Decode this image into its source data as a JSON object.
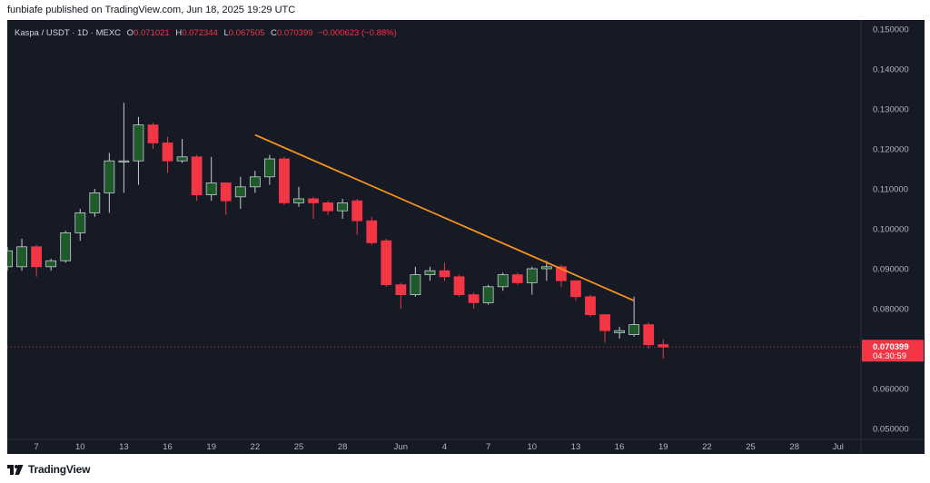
{
  "header": {
    "publish_text": "funbiafe published on TradingView.com, Jun 18, 2025 19:29 UTC"
  },
  "legend": {
    "symbol": "Kaspa / USDT · 1D · MEXC",
    "open_label": "O",
    "open": "0.071021",
    "high_label": "H",
    "high": "0.072344",
    "low_label": "L",
    "low": "0.067505",
    "close_label": "C",
    "close": "0.070399",
    "change": "−0.000623 (−0.88%)"
  },
  "price_tag": {
    "price": "0.070399",
    "countdown": "04:30:59"
  },
  "footer": {
    "brand": "TradingView"
  },
  "colors": {
    "up": "#1f5a2a",
    "down": "#f23645",
    "trendline": "#f7931a",
    "background": "#161a25"
  },
  "chart_data": {
    "type": "candlestick",
    "y_range": [
      0.04,
      0.155
    ],
    "y_ticks": [
      "0.150000",
      "0.140000",
      "0.130000",
      "0.120000",
      "0.110000",
      "0.100000",
      "0.090000",
      "0.080000",
      "0.060000",
      "0.050000"
    ],
    "x_ticks": [
      "7",
      "10",
      "13",
      "16",
      "19",
      "22",
      "25",
      "28",
      "Jun",
      "4",
      "7",
      "10",
      "13",
      "16",
      "19",
      "22",
      "25",
      "28",
      "Jul"
    ],
    "candles": [
      {
        "d": "May 5",
        "o": 0.0905,
        "h": 0.0955,
        "l": 0.0895,
        "c": 0.0945
      },
      {
        "d": "May 6",
        "o": 0.0905,
        "h": 0.0975,
        "l": 0.0895,
        "c": 0.0955
      },
      {
        "d": "May 7",
        "o": 0.0955,
        "h": 0.096,
        "l": 0.088,
        "c": 0.0905
      },
      {
        "d": "May 8",
        "o": 0.0905,
        "h": 0.0925,
        "l": 0.0895,
        "c": 0.092
      },
      {
        "d": "May 9",
        "o": 0.092,
        "h": 0.0995,
        "l": 0.0915,
        "c": 0.099
      },
      {
        "d": "May 10",
        "o": 0.099,
        "h": 0.105,
        "l": 0.097,
        "c": 0.104
      },
      {
        "d": "May 11",
        "o": 0.104,
        "h": 0.11,
        "l": 0.103,
        "c": 0.109
      },
      {
        "d": "May 12",
        "o": 0.109,
        "h": 0.119,
        "l": 0.104,
        "c": 0.117
      },
      {
        "d": "May 13",
        "o": 0.117,
        "h": 0.1315,
        "l": 0.109,
        "c": 0.117
      },
      {
        "d": "May 14",
        "o": 0.117,
        "h": 0.128,
        "l": 0.111,
        "c": 0.126
      },
      {
        "d": "May 15",
        "o": 0.126,
        "h": 0.1265,
        "l": 0.12,
        "c": 0.1215
      },
      {
        "d": "May 16",
        "o": 0.1215,
        "h": 0.123,
        "l": 0.114,
        "c": 0.117
      },
      {
        "d": "May 17",
        "o": 0.117,
        "h": 0.1225,
        "l": 0.1165,
        "c": 0.118
      },
      {
        "d": "May 18",
        "o": 0.118,
        "h": 0.1185,
        "l": 0.107,
        "c": 0.1085
      },
      {
        "d": "May 19",
        "o": 0.1085,
        "h": 0.118,
        "l": 0.107,
        "c": 0.1115
      },
      {
        "d": "May 20",
        "o": 0.1115,
        "h": 0.1115,
        "l": 0.1035,
        "c": 0.107
      },
      {
        "d": "May 21",
        "o": 0.108,
        "h": 0.113,
        "l": 0.105,
        "c": 0.1105
      },
      {
        "d": "May 22",
        "o": 0.1105,
        "h": 0.1145,
        "l": 0.109,
        "c": 0.113
      },
      {
        "d": "May 23",
        "o": 0.113,
        "h": 0.1185,
        "l": 0.111,
        "c": 0.1175
      },
      {
        "d": "May 24",
        "o": 0.1175,
        "h": 0.118,
        "l": 0.106,
        "c": 0.1065
      },
      {
        "d": "May 25",
        "o": 0.1065,
        "h": 0.1105,
        "l": 0.1055,
        "c": 0.1075
      },
      {
        "d": "May 26",
        "o": 0.1075,
        "h": 0.108,
        "l": 0.1025,
        "c": 0.1065
      },
      {
        "d": "May 27",
        "o": 0.1065,
        "h": 0.107,
        "l": 0.1035,
        "c": 0.1045
      },
      {
        "d": "May 28",
        "o": 0.1045,
        "h": 0.1075,
        "l": 0.1025,
        "c": 0.1065
      },
      {
        "d": "May 29",
        "o": 0.107,
        "h": 0.1075,
        "l": 0.0985,
        "c": 0.102
      },
      {
        "d": "May 30",
        "o": 0.102,
        "h": 0.103,
        "l": 0.096,
        "c": 0.0965
      },
      {
        "d": "May 31",
        "o": 0.097,
        "h": 0.0975,
        "l": 0.0855,
        "c": 0.086
      },
      {
        "d": "Jun 1",
        "o": 0.086,
        "h": 0.0865,
        "l": 0.08,
        "c": 0.0835
      },
      {
        "d": "Jun 2",
        "o": 0.0835,
        "h": 0.0905,
        "l": 0.083,
        "c": 0.0885
      },
      {
        "d": "Jun 3",
        "o": 0.0885,
        "h": 0.0905,
        "l": 0.087,
        "c": 0.0895
      },
      {
        "d": "Jun 4",
        "o": 0.0895,
        "h": 0.0915,
        "l": 0.087,
        "c": 0.088
      },
      {
        "d": "Jun 5",
        "o": 0.088,
        "h": 0.0885,
        "l": 0.083,
        "c": 0.0835
      },
      {
        "d": "Jun 6",
        "o": 0.0835,
        "h": 0.084,
        "l": 0.08,
        "c": 0.0815
      },
      {
        "d": "Jun 7",
        "o": 0.0815,
        "h": 0.086,
        "l": 0.081,
        "c": 0.0855
      },
      {
        "d": "Jun 8",
        "o": 0.0855,
        "h": 0.089,
        "l": 0.0845,
        "c": 0.0885
      },
      {
        "d": "Jun 9",
        "o": 0.0885,
        "h": 0.089,
        "l": 0.086,
        "c": 0.0865
      },
      {
        "d": "Jun 10",
        "o": 0.0865,
        "h": 0.0905,
        "l": 0.0835,
        "c": 0.09
      },
      {
        "d": "Jun 11",
        "o": 0.09,
        "h": 0.092,
        "l": 0.087,
        "c": 0.0905
      },
      {
        "d": "Jun 12",
        "o": 0.0905,
        "h": 0.091,
        "l": 0.0855,
        "c": 0.087
      },
      {
        "d": "Jun 13",
        "o": 0.087,
        "h": 0.087,
        "l": 0.082,
        "c": 0.083
      },
      {
        "d": "Jun 14",
        "o": 0.083,
        "h": 0.0835,
        "l": 0.078,
        "c": 0.0785
      },
      {
        "d": "Jun 15",
        "o": 0.0785,
        "h": 0.0785,
        "l": 0.0715,
        "c": 0.0745
      },
      {
        "d": "Jun 16",
        "o": 0.074,
        "h": 0.0755,
        "l": 0.0725,
        "c": 0.0745
      },
      {
        "d": "Jun 17",
        "o": 0.0735,
        "h": 0.083,
        "l": 0.073,
        "c": 0.076
      },
      {
        "d": "Jun 18",
        "o": 0.076,
        "h": 0.0765,
        "l": 0.07,
        "c": 0.071
      },
      {
        "d": "Jun 19",
        "o": 0.071,
        "h": 0.0723,
        "l": 0.0675,
        "c": 0.0704
      }
    ],
    "trendline": {
      "from": {
        "d": "May 22",
        "price": 0.1235
      },
      "to": {
        "d": "Jun 17",
        "price": 0.082
      }
    },
    "current_price": 0.070399
  }
}
